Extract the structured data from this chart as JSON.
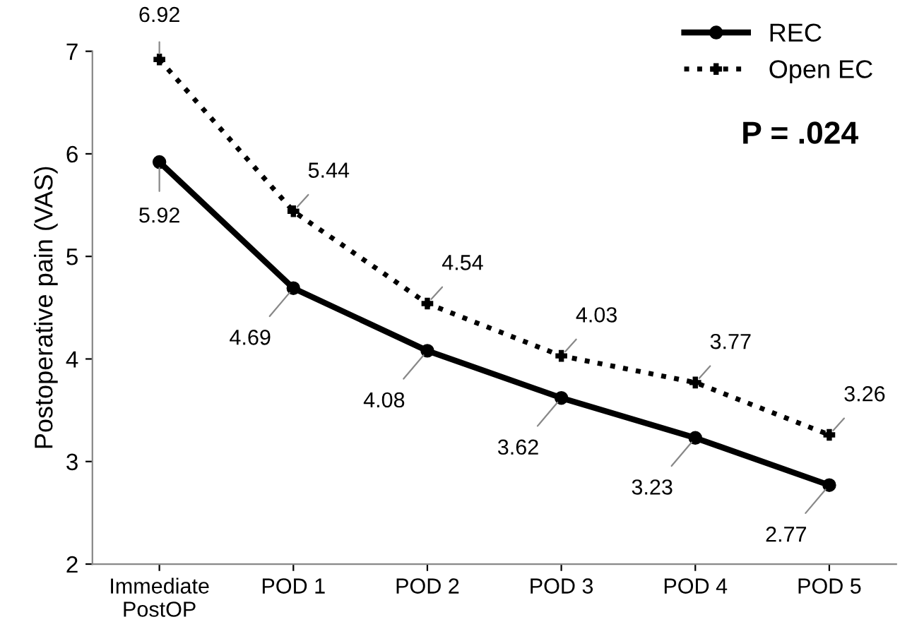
{
  "chart_data": {
    "type": "line",
    "ylabel": "Postoperative pain (VAS)",
    "categories": [
      "Immediate\nPostOP",
      "POD 1",
      "POD 2",
      "POD 3",
      "POD 4",
      "POD 5"
    ],
    "series": [
      {
        "name": "REC",
        "color": "#000000",
        "values": [
          5.92,
          4.69,
          4.08,
          3.62,
          3.23,
          2.77
        ],
        "marker": "circle",
        "line_style": "solid"
      },
      {
        "name": "Open EC",
        "color": "#000000",
        "values": [
          6.92,
          5.44,
          4.54,
          4.03,
          3.77,
          3.26
        ],
        "marker": "cross",
        "line_style": "dotted"
      }
    ],
    "ylim": [
      2,
      7
    ],
    "yticks": [
      2,
      3,
      4,
      5,
      6,
      7
    ],
    "grid": false,
    "legend": "top right",
    "data_labels": true,
    "annotations": [
      "P = .024"
    ]
  }
}
